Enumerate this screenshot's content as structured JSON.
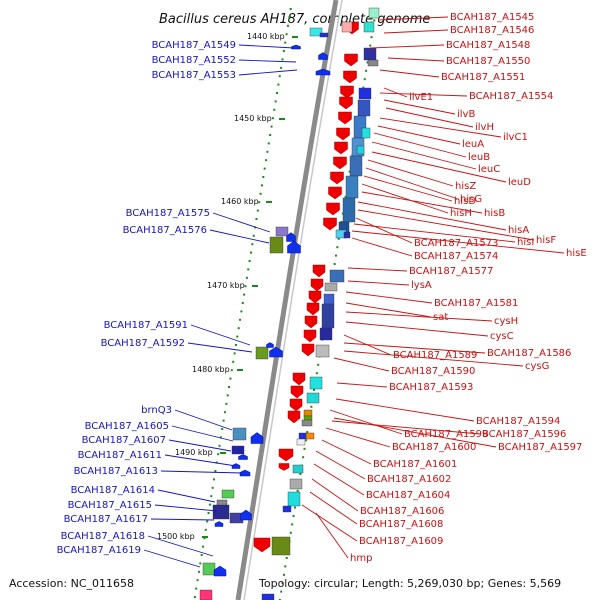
{
  "title": "Bacillus cereus AH187, complete genome",
  "accession": "Accession: NC_011658",
  "topology": "Topology: circular; Length: 5,269,030 bp; Genes: 5,569",
  "colors": {
    "backbone": "#8a8a8a",
    "blue_label": "#1515c8",
    "red_label": "#cc1111",
    "tick": "#1a8a1a"
  },
  "kbp_ticks": [
    "1440 kbp",
    "1450 kbp",
    "1460 kbp",
    "1470 kbp",
    "1480 kbp",
    "1490 kbp",
    "1500 kbp"
  ],
  "left_genes": [
    "BCAH187_A1549",
    "BCAH187_A1552",
    "BCAH187_A1553",
    "BCAH187_A1575",
    "BCAH187_A1576",
    "BCAH187_A1591",
    "BCAH187_A1592",
    "brnQ3",
    "BCAH187_A1605",
    "BCAH187_A1607",
    "BCAH187_A1611",
    "BCAH187_A1613",
    "BCAH187_A1614",
    "BCAH187_A1615",
    "BCAH187_A1617",
    "BCAH187_A1618",
    "BCAH187_A1619"
  ],
  "right_genes": [
    "BCAH187_A1545",
    "BCAH187_A1546",
    "BCAH187_A1548",
    "BCAH187_A1550",
    "BCAH187_A1551",
    "ilvE1",
    "BCAH187_A1554",
    "ilvB",
    "ilvH",
    "ilvC1",
    "leuA",
    "leuB",
    "leuC",
    "leuD",
    "hisZ",
    "hisG",
    "hisD",
    "hisH",
    "hisB",
    "hisA",
    "hisF",
    "BCAH187_A1573",
    "hisI",
    "hisE",
    "BCAH187_A1574",
    "BCAH187_A1577",
    "lysA",
    "BCAH187_A1581",
    "sat",
    "cysH",
    "cysC",
    "BCAH187_A1589",
    "BCAH187_A1586",
    "cysG",
    "BCAH187_A1590",
    "BCAH187_A1593",
    "BCAH187_A1594",
    "BCAH187_A1599",
    "BCAH187_A1596",
    "BCAH187_A1600",
    "BCAH187_A1597",
    "BCAH187_A1601",
    "BCAH187_A1602",
    "BCAH187_A1604",
    "BCAH187_A1606",
    "BCAH187_A1608",
    "BCAH187_A1609",
    "hmp"
  ]
}
